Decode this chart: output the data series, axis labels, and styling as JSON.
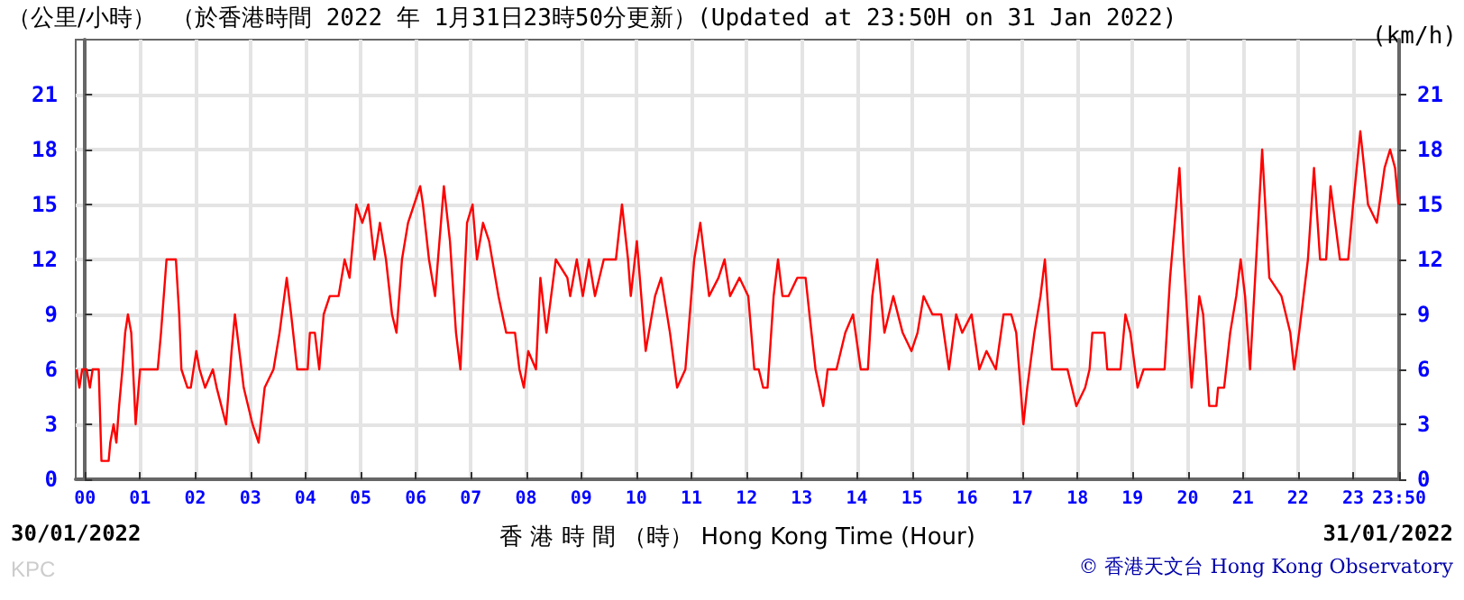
{
  "chart_data": {
    "type": "line",
    "title": "（於香港時間 2022 年 1月31日23時50分更新）(Updated at 23:50H on 31 Jan 2022)",
    "ylabel": "（公里/小時）",
    "y2label": "(km/h)",
    "xlabel": "香 港 時 間 （時） Hong Kong Time (Hour)",
    "annotations": [
      "30/01/2022",
      "31/01/2022",
      "KPC",
      "© 香港天文台 Hong Kong Observatory"
    ],
    "series": [
      {
        "color": "#ff0000",
        "x": [
          -0.15,
          -0.1,
          -0.05,
          0.03,
          0.09,
          0.14,
          0.25,
          0.3,
          0.43,
          0.46,
          0.52,
          0.57,
          0.62,
          0.68,
          0.73,
          0.78,
          0.84,
          0.89,
          0.92,
          1.0,
          1.32,
          1.38,
          1.48,
          1.65,
          1.71,
          1.75,
          1.86,
          1.92,
          2.02,
          2.08,
          2.18,
          2.32,
          2.39,
          2.56,
          2.66,
          2.72,
          2.8,
          2.88,
          3.04,
          3.15,
          3.26,
          3.42,
          3.53,
          3.66,
          3.74,
          3.85,
          4.04,
          4.08,
          4.17,
          4.25,
          4.33,
          4.44,
          4.6,
          4.71,
          4.8,
          4.92,
          5.03,
          5.14,
          5.25,
          5.35,
          5.46,
          5.57,
          5.65,
          5.75,
          5.86,
          5.97,
          6.08,
          6.13,
          6.24,
          6.35,
          6.51,
          6.62,
          6.73,
          6.81,
          6.93,
          7.03,
          7.11,
          7.22,
          7.33,
          7.5,
          7.64,
          7.8,
          7.88,
          7.96,
          8.04,
          8.18,
          8.26,
          8.37,
          8.54,
          8.75,
          8.8,
          8.92,
          9.03,
          9.14,
          9.25,
          9.41,
          9.63,
          9.74,
          9.85,
          9.9,
          10.01,
          10.17,
          10.34,
          10.45,
          10.61,
          10.74,
          10.89,
          11.05,
          11.16,
          11.32,
          11.49,
          11.6,
          11.7,
          11.87,
          12.03,
          12.14,
          12.22,
          12.3,
          12.38,
          12.49,
          12.57,
          12.65,
          12.76,
          12.92,
          13.07,
          13.14,
          13.25,
          13.39,
          13.47,
          13.63,
          13.79,
          13.93,
          14.07,
          14.2,
          14.28,
          14.37,
          14.5,
          14.66,
          14.83,
          14.99,
          15.1,
          15.21,
          15.37,
          15.53,
          15.67,
          15.8,
          15.91,
          16.08,
          16.22,
          16.35,
          16.52,
          16.66,
          16.8,
          16.89,
          17.02,
          17.09,
          17.22,
          17.33,
          17.41,
          17.54,
          17.65,
          17.82,
          17.98,
          18.14,
          18.22,
          18.27,
          18.49,
          18.54,
          18.78,
          18.87,
          18.96,
          19.09,
          19.2,
          19.58,
          19.68,
          19.85,
          19.93,
          20.07,
          20.21,
          20.28,
          20.39,
          20.52,
          20.55,
          20.66,
          20.77,
          20.88,
          20.96,
          21.04,
          21.13,
          21.26,
          21.35,
          21.48,
          21.7,
          21.86,
          21.93,
          22.02,
          22.18,
          22.29,
          22.4,
          22.51,
          22.59,
          22.76,
          22.91,
          23.0,
          23.13,
          23.27,
          23.43,
          23.57,
          23.67,
          23.76,
          23.82
        ],
        "values": [
          6,
          5,
          6,
          6,
          5,
          6,
          6,
          1,
          1,
          2,
          3,
          2,
          4,
          6,
          8,
          9,
          8,
          5,
          3,
          6,
          6,
          8,
          12,
          12,
          9,
          6,
          5,
          5,
          7,
          6,
          5,
          6,
          5,
          3,
          7,
          9,
          7,
          5,
          3,
          2,
          5,
          6,
          8,
          11,
          9,
          6,
          6,
          8,
          8,
          6,
          9,
          10,
          10,
          12,
          11,
          15,
          14,
          15,
          12,
          14,
          12,
          9,
          8,
          12,
          14,
          15,
          16,
          15,
          12,
          10,
          16,
          13,
          8,
          6,
          14,
          15,
          12,
          14,
          13,
          10,
          8,
          8,
          6,
          5,
          7,
          6,
          11,
          8,
          12,
          11,
          10,
          12,
          10,
          12,
          10,
          12,
          12,
          15,
          12,
          10,
          13,
          7,
          10,
          11,
          8,
          5,
          6,
          12,
          14,
          10,
          11,
          12,
          10,
          11,
          10,
          6,
          6,
          5,
          5,
          10,
          12,
          10,
          10,
          11,
          11,
          9,
          6,
          4,
          6,
          6,
          8,
          9,
          6,
          6,
          10,
          12,
          8,
          10,
          8,
          7,
          8,
          10,
          9,
          9,
          6,
          9,
          8,
          9,
          6,
          7,
          6,
          9,
          9,
          8,
          3,
          5,
          8,
          10,
          12,
          6,
          6,
          6,
          4,
          5,
          6,
          8,
          8,
          6,
          6,
          9,
          8,
          5,
          6,
          6,
          11,
          17,
          12,
          5,
          10,
          9,
          4,
          4,
          5,
          5,
          8,
          10,
          12,
          10,
          6,
          13,
          18,
          11,
          10,
          8,
          6,
          8,
          12,
          17,
          12,
          12,
          16,
          12,
          12,
          15,
          19,
          15,
          14,
          17,
          18,
          17,
          15
        ]
      }
    ],
    "xlim": [
      -0.1667,
      23.8333
    ],
    "xticks": [
      {
        "value": 0,
        "label": "00"
      },
      {
        "value": 1,
        "label": "01"
      },
      {
        "value": 2,
        "label": "02"
      },
      {
        "value": 3,
        "label": "03"
      },
      {
        "value": 4,
        "label": "04"
      },
      {
        "value": 5,
        "label": "05"
      },
      {
        "value": 6,
        "label": "06"
      },
      {
        "value": 7,
        "label": "07"
      },
      {
        "value": 8,
        "label": "08"
      },
      {
        "value": 9,
        "label": "09"
      },
      {
        "value": 10,
        "label": "10"
      },
      {
        "value": 11,
        "label": "11"
      },
      {
        "value": 12,
        "label": "12"
      },
      {
        "value": 13,
        "label": "13"
      },
      {
        "value": 14,
        "label": "14"
      },
      {
        "value": 15,
        "label": "15"
      },
      {
        "value": 16,
        "label": "16"
      },
      {
        "value": 17,
        "label": "17"
      },
      {
        "value": 18,
        "label": "18"
      },
      {
        "value": 19,
        "label": "19"
      },
      {
        "value": 20,
        "label": "20"
      },
      {
        "value": 21,
        "label": "21"
      },
      {
        "value": 22,
        "label": "22"
      },
      {
        "value": 23,
        "label": "23"
      },
      {
        "value": 23.8333,
        "label": "23:50"
      }
    ],
    "ylim": [
      0,
      24
    ],
    "yticks": [
      0,
      3,
      6,
      9,
      12,
      15,
      18,
      21
    ],
    "y2lim": [
      0,
      24
    ],
    "y2ticks": [
      0,
      3,
      6,
      9,
      12,
      15,
      18,
      21
    ],
    "grid": true,
    "marker": "none",
    "line_style": "solid"
  }
}
